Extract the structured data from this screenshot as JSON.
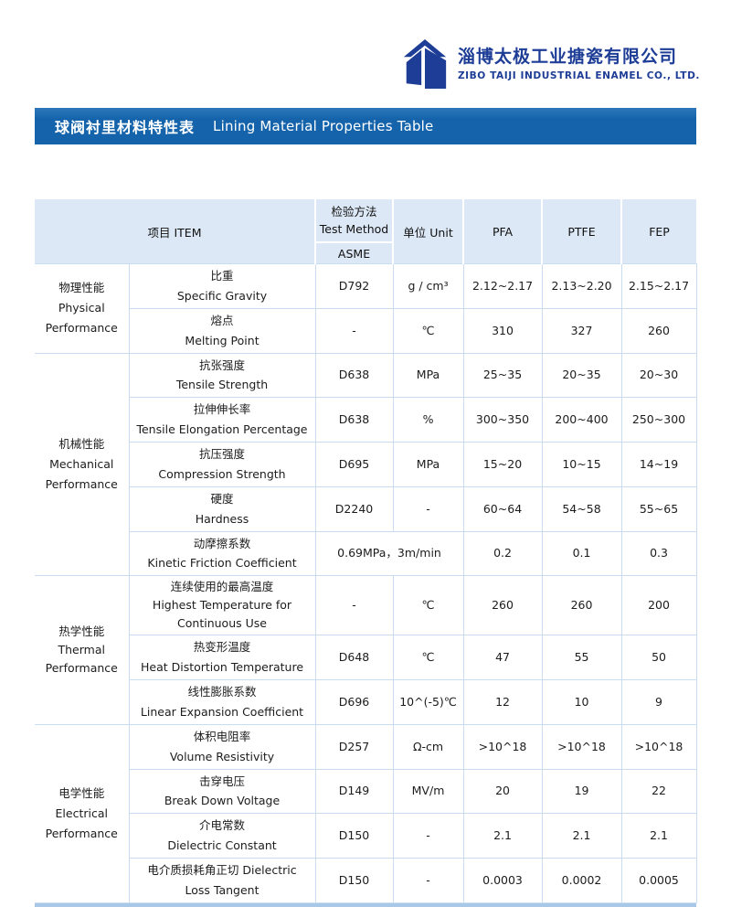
{
  "logo": {
    "company_cn": "淄博太极工业搪瓷有限公司",
    "company_en": "ZIBO TAIJI INDUSTRIAL ENAMEL CO., LTD."
  },
  "title_bar": {
    "title_cn": "球阀衬里材料特性表",
    "title_en": "Lining Material Properties Table"
  },
  "table": {
    "header": {
      "item": "项目 ITEM",
      "test_method_cn": "检验方法",
      "test_method_en": "Test Method",
      "test_method_std": "ASME",
      "unit": "单位 Unit",
      "pfa": "PFA",
      "ptfe": "PTFE",
      "fep": "FEP"
    },
    "groups": [
      {
        "category_lines": [
          "物理性能",
          "Physical",
          "Performance"
        ],
        "rows": [
          {
            "name_lines": [
              "比重",
              "Specific Gravity"
            ],
            "method": "D792",
            "unit": "g / cm³",
            "pfa": "2.12~2.17",
            "ptfe": "2.13~2.20",
            "fep": "2.15~2.17"
          },
          {
            "name_lines": [
              "熔点",
              "Melting Point"
            ],
            "method": "-",
            "unit": "℃",
            "pfa": "310",
            "ptfe": "327",
            "fep": "260"
          }
        ]
      },
      {
        "category_lines": [
          "机械性能",
          "Mechanical",
          "Performance"
        ],
        "rows": [
          {
            "name_lines": [
              "抗张强度",
              "Tensile Strength"
            ],
            "method": "D638",
            "unit": "MPa",
            "pfa": "25~35",
            "ptfe": "20~35",
            "fep": "20~30"
          },
          {
            "name_lines": [
              "拉伸伸长率",
              "Tensile Elongation Percentage"
            ],
            "method": "D638",
            "unit": "%",
            "pfa": "300~350",
            "ptfe": "200~400",
            "fep": "250~300"
          },
          {
            "name_lines": [
              "抗压强度",
              "Compression Strength"
            ],
            "method": "D695",
            "unit": "MPa",
            "pfa": "15~20",
            "ptfe": "10~15",
            "fep": "14~19"
          },
          {
            "name_lines": [
              "硬度",
              "Hardness"
            ],
            "method": "D2240",
            "unit": "-",
            "pfa": "60~64",
            "ptfe": "54~58",
            "fep": "55~65"
          },
          {
            "name_lines": [
              "动摩擦系数",
              "Kinetic Friction Coefficient"
            ],
            "merged_method_unit": "0.69MPa，3m/min",
            "pfa": "0.2",
            "ptfe": "0.1",
            "fep": "0.3"
          }
        ]
      },
      {
        "category_lines": [
          "热学性能",
          "Thermal",
          "Performance"
        ],
        "rows": [
          {
            "name_lines": [
              "连续使用的最高温度",
              "Highest Temperature for",
              "Continuous Use"
            ],
            "method": "-",
            "unit": "℃",
            "pfa": "260",
            "ptfe": "260",
            "fep": "200",
            "tall": true
          },
          {
            "name_lines": [
              "热变形温度",
              "Heat Distortion Temperature"
            ],
            "method": "D648",
            "unit": "℃",
            "pfa": "47",
            "ptfe": "55",
            "fep": "50"
          },
          {
            "name_lines": [
              "线性膨胀系数",
              "Linear Expansion Coefficient"
            ],
            "method": "D696",
            "unit": "10^(-5)℃",
            "pfa": "12",
            "ptfe": "10",
            "fep": "9"
          }
        ]
      },
      {
        "category_lines": [
          "电学性能",
          "Electrical",
          "Performance"
        ],
        "rows": [
          {
            "name_lines": [
              "体积电阻率",
              "Volume Resistivity"
            ],
            "method": "D257",
            "unit": "Ω-cm",
            "pfa": ">10^18",
            "ptfe": ">10^18",
            "fep": ">10^18"
          },
          {
            "name_lines": [
              "击穿电压",
              "Break Down Voltage"
            ],
            "method": "D149",
            "unit": "MV/m",
            "pfa": "20",
            "ptfe": "19",
            "fep": "22"
          },
          {
            "name_lines": [
              "介电常数",
              "Dielectric Constant"
            ],
            "method": "D150",
            "unit": "-",
            "pfa": "2.1",
            "ptfe": "2.1",
            "fep": "2.1"
          },
          {
            "name_lines": [
              "电介质损耗角正切 Dielectric",
              "Loss Tangent"
            ],
            "method": "D150",
            "unit": "-",
            "pfa": "0.0003",
            "ptfe": "0.0002",
            "fep": "0.0005"
          }
        ]
      }
    ]
  },
  "colors": {
    "accent_blue": "#1564ab",
    "logo_blue": "#1e3d96",
    "header_bg": "#dce8f5",
    "table_border": "#c9dcf1",
    "bottom_bar": "#a9c8e8",
    "text": "#1c1c1c"
  }
}
